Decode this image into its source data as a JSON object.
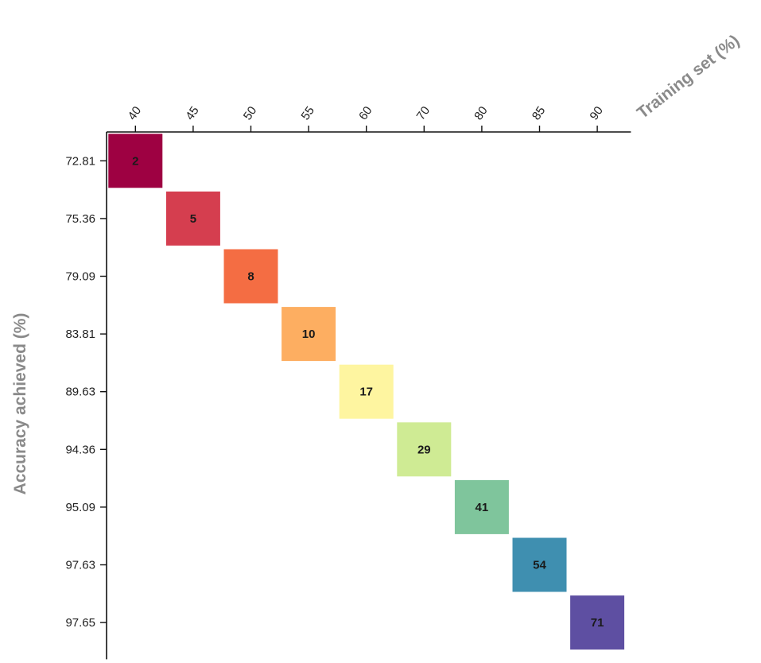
{
  "chart_data": {
    "type": "heatmap",
    "xlabel": "Training set (%)",
    "ylabel": "Accuracy achieved (%)",
    "x_categories": [
      "40",
      "45",
      "50",
      "55",
      "60",
      "70",
      "80",
      "85",
      "90"
    ],
    "y_categories": [
      "72.81",
      "75.36",
      "79.09",
      "83.81",
      "89.63",
      "94.36",
      "95.09",
      "97.63",
      "97.65"
    ],
    "x_axis_position": "top",
    "legend": "none",
    "grid": false,
    "cells": [
      {
        "x": "40",
        "y": "72.81",
        "value": 2,
        "color": "#9e0142"
      },
      {
        "x": "45",
        "y": "75.36",
        "value": 5,
        "color": "#d53e4f"
      },
      {
        "x": "50",
        "y": "79.09",
        "value": 8,
        "color": "#f46d43"
      },
      {
        "x": "55",
        "y": "83.81",
        "value": 10,
        "color": "#fdae61"
      },
      {
        "x": "60",
        "y": "89.63",
        "value": 17,
        "color": "#fef5a0"
      },
      {
        "x": "70",
        "y": "94.36",
        "value": 29,
        "color": "#cfeb94"
      },
      {
        "x": "80",
        "y": "95.09",
        "value": 41,
        "color": "#7fc59c"
      },
      {
        "x": "85",
        "y": "97.63",
        "value": 54,
        "color": "#3f8fb0"
      },
      {
        "x": "90",
        "y": "97.65",
        "value": 71,
        "color": "#5e4fa2"
      }
    ]
  }
}
